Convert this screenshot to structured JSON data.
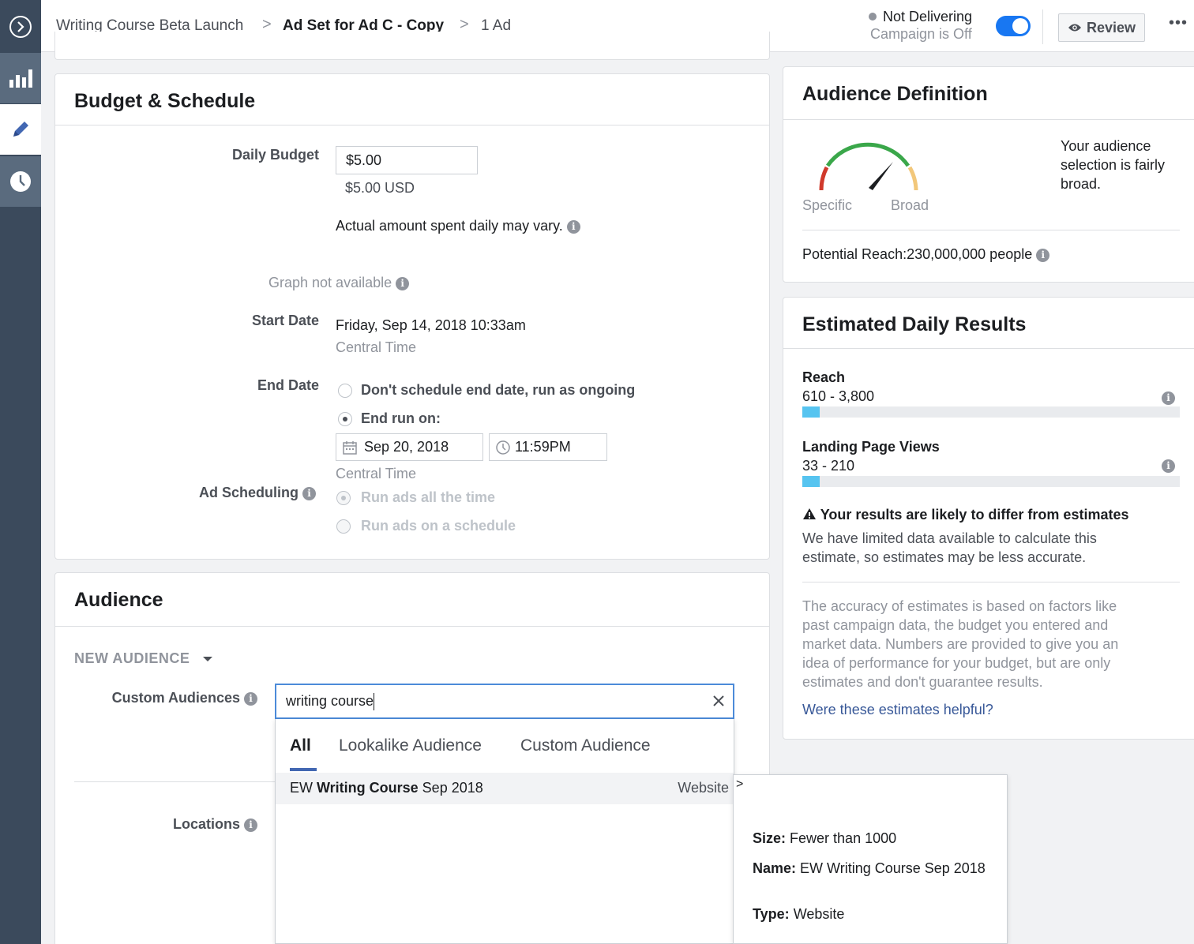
{
  "breadcrumb": {
    "campaign": "Writing Course Beta Launch",
    "adset": "Ad Set for Ad C - Copy",
    "ads": "1 Ad"
  },
  "status": {
    "delivery": "Not Delivering",
    "campaign_state": "Campaign is Off",
    "review_label": "Review",
    "more_label": "•••",
    "toggle_on": true
  },
  "budget": {
    "title": "Budget & Schedule",
    "daily_budget_label": "Daily Budget",
    "daily_budget_value": "$5.00",
    "daily_budget_usd": "$5.00 USD",
    "vary_note": "Actual amount spent daily may vary.",
    "graph_note": "Graph not available",
    "start_label": "Start Date",
    "start_value": "Friday, Sep 14, 2018 10:33am",
    "start_tz": "Central Time",
    "end_label": "End Date",
    "end_option_ongoing": "Don't schedule end date, run as ongoing",
    "end_option_run_on": "End run on:",
    "end_date": "Sep 20, 2018",
    "end_time": "11:59PM",
    "end_tz": "Central Time",
    "scheduling_label": "Ad Scheduling",
    "sched_all_time": "Run ads all the time",
    "sched_schedule": "Run ads on a schedule"
  },
  "audience": {
    "title": "Audience",
    "new_audience": "NEW AUDIENCE",
    "custom_label": "Custom Audiences",
    "search_value": "writing course",
    "locations_label": "Locations",
    "tabs": [
      "All",
      "Lookalike Audience",
      "Custom Audience"
    ],
    "result": {
      "prefix": "EW ",
      "match": "Writing Course",
      "suffix": " Sep 2018",
      "type": "Website"
    },
    "tooltip": {
      "size_label": "Size:",
      "size_value": "Fewer than 1000",
      "name_label": "Name:",
      "name_value": "EW Writing Course Sep 2018",
      "type_label": "Type:",
      "type_value": "Website"
    }
  },
  "audience_definition": {
    "title": "Audience Definition",
    "specific": "Specific",
    "broad": "Broad",
    "description": [
      "Your audience",
      "selection is fairly",
      "broad."
    ],
    "reach": "Potential Reach:230,000,000 people"
  },
  "estimates": {
    "title": "Estimated Daily Results",
    "reach_label": "Reach",
    "reach_value": "610 - 3,800",
    "reach_fill": 0.047,
    "lpv_label": "Landing Page Views",
    "lpv_value": "33 - 210",
    "lpv_fill": 0.047,
    "warning_title": "Your results are likely to differ from estimates",
    "warning_body": [
      "We have limited data available to calculate this",
      "estimate, so estimates may be less accurate."
    ],
    "accuracy": [
      "The accuracy of estimates is based on factors like",
      "past campaign data, the budget you entered and",
      "market data. Numbers are provided to give you an",
      "idea of performance for your budget, but are only",
      "estimates and don't guarantee results."
    ],
    "helpful_link": "Were these estimates helpful?"
  },
  "colors": {
    "accent": "#1877f2",
    "link": "#385898",
    "bar": "#56c4f0",
    "rail": "#3b4a5c"
  }
}
